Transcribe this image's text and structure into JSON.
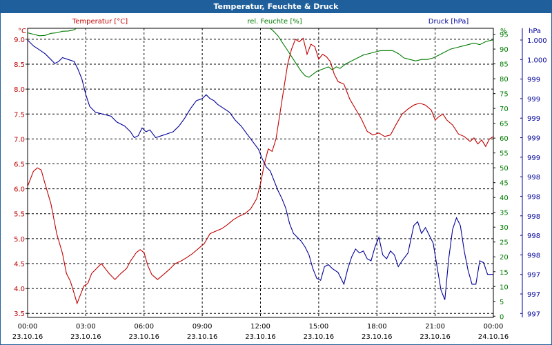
{
  "window": {
    "title": "Temperatur, Feuchte & Druck"
  },
  "colors": {
    "temperature": "#c00000",
    "humidity": "#007a00",
    "pressure": "#000099",
    "axis": "#000000",
    "grid": "#000000",
    "background": "#ffffff",
    "title_bg": "#1f5f9c"
  },
  "chart_data": {
    "type": "line",
    "title": "Temperatur, Feuchte & Druck",
    "grid": true,
    "x_axis": {
      "range_hours": [
        0,
        24
      ],
      "ticks": [
        {
          "h": 0,
          "time": "00:00",
          "date": "23.10.16"
        },
        {
          "h": 3,
          "time": "03:00",
          "date": "23.10.16"
        },
        {
          "h": 6,
          "time": "06:00",
          "date": "23.10.16"
        },
        {
          "h": 9,
          "time": "09:00",
          "date": "23.10.16"
        },
        {
          "h": 12,
          "time": "12:00",
          "date": "23.10.16"
        },
        {
          "h": 15,
          "time": "15:00",
          "date": "23.10.16"
        },
        {
          "h": 18,
          "time": "18:00",
          "date": "23.10.16"
        },
        {
          "h": 21,
          "time": "21:00",
          "date": "23.10.16"
        },
        {
          "h": 24,
          "time": "00:00",
          "date": "24.10.16"
        }
      ]
    },
    "temperature": {
      "name": "Temperatur [°C]",
      "unit": "°C",
      "ylim": [
        3.42,
        9.22
      ],
      "ticks": [
        "3.5",
        "4.0",
        "4.5",
        "5.0",
        "5.5",
        "6.0",
        "6.5",
        "7.0",
        "7.5",
        "8.0",
        "8.5",
        "9.0"
      ],
      "points": [
        [
          0,
          6.05
        ],
        [
          0.3,
          6.35
        ],
        [
          0.5,
          6.42
        ],
        [
          0.7,
          6.38
        ],
        [
          0.9,
          6.1
        ],
        [
          1.2,
          5.7
        ],
        [
          1.5,
          5.1
        ],
        [
          1.8,
          4.7
        ],
        [
          2.0,
          4.3
        ],
        [
          2.2,
          4.15
        ],
        [
          2.4,
          3.9
        ],
        [
          2.55,
          3.7
        ],
        [
          2.7,
          3.85
        ],
        [
          2.9,
          4.05
        ],
        [
          3.1,
          4.1
        ],
        [
          3.3,
          4.3
        ],
        [
          3.5,
          4.38
        ],
        [
          3.8,
          4.5
        ],
        [
          4.0,
          4.4
        ],
        [
          4.2,
          4.3
        ],
        [
          4.5,
          4.18
        ],
        [
          4.8,
          4.3
        ],
        [
          5.1,
          4.4
        ],
        [
          5.3,
          4.55
        ],
        [
          5.6,
          4.72
        ],
        [
          5.8,
          4.78
        ],
        [
          6.0,
          4.72
        ],
        [
          6.2,
          4.45
        ],
        [
          6.4,
          4.28
        ],
        [
          6.7,
          4.18
        ],
        [
          7.0,
          4.28
        ],
        [
          7.3,
          4.38
        ],
        [
          7.6,
          4.5
        ],
        [
          7.9,
          4.55
        ],
        [
          8.2,
          4.62
        ],
        [
          8.5,
          4.7
        ],
        [
          8.8,
          4.8
        ],
        [
          9.1,
          4.9
        ],
        [
          9.4,
          5.1
        ],
        [
          9.7,
          5.15
        ],
        [
          10.0,
          5.2
        ],
        [
          10.3,
          5.28
        ],
        [
          10.6,
          5.38
        ],
        [
          10.9,
          5.45
        ],
        [
          11.2,
          5.5
        ],
        [
          11.5,
          5.6
        ],
        [
          11.8,
          5.8
        ],
        [
          12.0,
          6.1
        ],
        [
          12.2,
          6.5
        ],
        [
          12.4,
          6.8
        ],
        [
          12.6,
          6.75
        ],
        [
          12.8,
          7.0
        ],
        [
          13.0,
          7.5
        ],
        [
          13.2,
          8.0
        ],
        [
          13.4,
          8.5
        ],
        [
          13.6,
          8.8
        ],
        [
          13.8,
          9.0
        ],
        [
          14.0,
          8.95
        ],
        [
          14.2,
          9.02
        ],
        [
          14.4,
          8.7
        ],
        [
          14.6,
          8.9
        ],
        [
          14.8,
          8.85
        ],
        [
          15.0,
          8.6
        ],
        [
          15.2,
          8.7
        ],
        [
          15.4,
          8.65
        ],
        [
          15.6,
          8.55
        ],
        [
          15.8,
          8.3
        ],
        [
          16.0,
          8.15
        ],
        [
          16.3,
          8.1
        ],
        [
          16.6,
          7.8
        ],
        [
          16.9,
          7.6
        ],
        [
          17.2,
          7.4
        ],
        [
          17.5,
          7.15
        ],
        [
          17.8,
          7.08
        ],
        [
          18.1,
          7.12
        ],
        [
          18.4,
          7.05
        ],
        [
          18.7,
          7.08
        ],
        [
          19.0,
          7.3
        ],
        [
          19.3,
          7.5
        ],
        [
          19.6,
          7.6
        ],
        [
          19.9,
          7.68
        ],
        [
          20.2,
          7.72
        ],
        [
          20.5,
          7.68
        ],
        [
          20.8,
          7.58
        ],
        [
          21.0,
          7.38
        ],
        [
          21.2,
          7.45
        ],
        [
          21.4,
          7.5
        ],
        [
          21.6,
          7.38
        ],
        [
          21.9,
          7.28
        ],
        [
          22.2,
          7.1
        ],
        [
          22.5,
          7.05
        ],
        [
          22.8,
          6.95
        ],
        [
          23.0,
          7.02
        ],
        [
          23.2,
          6.9
        ],
        [
          23.4,
          6.98
        ],
        [
          23.6,
          6.85
        ],
        [
          23.8,
          7.0
        ],
        [
          24.0,
          7.05
        ]
      ]
    },
    "humidity": {
      "name": "rel. Feuchte [%]",
      "unit": "%",
      "ylim": [
        -0.4,
        97.0
      ],
      "ticks": [
        "0",
        "5",
        "10",
        "15",
        "20",
        "25",
        "30",
        "35",
        "40",
        "45",
        "50",
        "55",
        "60",
        "65",
        "70",
        "75",
        "80",
        "85",
        "90",
        "95"
      ],
      "points": [
        [
          0,
          95.5
        ],
        [
          0.3,
          95
        ],
        [
          0.6,
          94.5
        ],
        [
          0.9,
          94.6
        ],
        [
          1.2,
          95.3
        ],
        [
          1.5,
          95.5
        ],
        [
          1.8,
          96.0
        ],
        [
          2.1,
          96.1
        ],
        [
          2.4,
          96.5
        ],
        [
          2.7,
          97.8
        ],
        [
          3.0,
          99
        ],
        [
          3.3,
          100
        ],
        [
          3.8,
          101
        ],
        [
          11.2,
          101
        ],
        [
          11.6,
          100
        ],
        [
          12.0,
          99
        ],
        [
          12.3,
          97.8
        ],
        [
          12.6,
          96.5
        ],
        [
          12.9,
          94.5
        ],
        [
          13.1,
          92.5
        ],
        [
          13.3,
          90.5
        ],
        [
          13.5,
          88.5
        ],
        [
          13.7,
          86.5
        ],
        [
          13.9,
          84.5
        ],
        [
          14.1,
          82.5
        ],
        [
          14.3,
          81.0
        ],
        [
          14.5,
          80.5
        ],
        [
          14.7,
          81.5
        ],
        [
          14.9,
          82.5
        ],
        [
          15.1,
          83.0
        ],
        [
          15.3,
          83.5
        ],
        [
          15.5,
          84.0
        ],
        [
          15.7,
          83.0
        ],
        [
          15.9,
          84.0
        ],
        [
          16.1,
          83.5
        ],
        [
          16.4,
          85.0
        ],
        [
          16.7,
          86.0
        ],
        [
          17.0,
          87.0
        ],
        [
          17.3,
          88.0
        ],
        [
          17.6,
          88.5
        ],
        [
          17.9,
          89.0
        ],
        [
          18.2,
          89.5
        ],
        [
          18.5,
          89.5
        ],
        [
          18.8,
          89.5
        ],
        [
          19.1,
          88.5
        ],
        [
          19.4,
          87.0
        ],
        [
          19.7,
          86.5
        ],
        [
          20.0,
          86.0
        ],
        [
          20.3,
          86.5
        ],
        [
          20.6,
          86.5
        ],
        [
          20.9,
          87.0
        ],
        [
          21.2,
          88.0
        ],
        [
          21.5,
          89.0
        ],
        [
          21.8,
          90.0
        ],
        [
          22.1,
          90.5
        ],
        [
          22.4,
          91.0
        ],
        [
          22.7,
          91.5
        ],
        [
          23.0,
          92.0
        ],
        [
          23.3,
          91.5
        ],
        [
          23.6,
          92.5
        ],
        [
          23.9,
          93.0
        ],
        [
          24.0,
          93.0
        ]
      ]
    },
    "pressure": {
      "name": "Druck [hPa]",
      "unit": "hPa",
      "ylim": [
        -0.2,
        14.6
      ],
      "ticks": [
        "997",
        "997",
        "997",
        "998",
        "998",
        "998",
        "998",
        "998",
        "999",
        "999",
        "999",
        "999",
        "999",
        "1.000",
        "1.000"
      ],
      "points": [
        [
          0,
          14.0
        ],
        [
          0.3,
          13.7
        ],
        [
          0.6,
          13.5
        ],
        [
          0.9,
          13.3
        ],
        [
          1.2,
          13.0
        ],
        [
          1.4,
          12.8
        ],
        [
          1.6,
          12.9
        ],
        [
          1.8,
          13.1
        ],
        [
          2.1,
          13.0
        ],
        [
          2.4,
          12.9
        ],
        [
          2.6,
          12.5
        ],
        [
          2.8,
          12.0
        ],
        [
          3.0,
          11.2
        ],
        [
          3.2,
          10.6
        ],
        [
          3.5,
          10.3
        ],
        [
          3.9,
          10.2
        ],
        [
          4.3,
          10.1
        ],
        [
          4.6,
          9.8
        ],
        [
          5.0,
          9.6
        ],
        [
          5.3,
          9.3
        ],
        [
          5.5,
          9.0
        ],
        [
          5.7,
          9.1
        ],
        [
          5.9,
          9.5
        ],
        [
          6.1,
          9.3
        ],
        [
          6.3,
          9.4
        ],
        [
          6.6,
          9.0
        ],
        [
          6.9,
          9.1
        ],
        [
          7.2,
          9.2
        ],
        [
          7.5,
          9.3
        ],
        [
          7.8,
          9.6
        ],
        [
          8.1,
          10.0
        ],
        [
          8.4,
          10.5
        ],
        [
          8.7,
          10.9
        ],
        [
          9.0,
          11.0
        ],
        [
          9.2,
          11.2
        ],
        [
          9.4,
          11.0
        ],
        [
          9.6,
          10.9
        ],
        [
          9.8,
          10.7
        ],
        [
          10.1,
          10.5
        ],
        [
          10.4,
          10.3
        ],
        [
          10.7,
          9.9
        ],
        [
          11.0,
          9.6
        ],
        [
          11.3,
          9.2
        ],
        [
          11.6,
          8.8
        ],
        [
          11.9,
          8.4
        ],
        [
          12.1,
          7.9
        ],
        [
          12.3,
          7.5
        ],
        [
          12.5,
          7.3
        ],
        [
          12.7,
          6.8
        ],
        [
          12.9,
          6.3
        ],
        [
          13.1,
          5.9
        ],
        [
          13.3,
          5.4
        ],
        [
          13.5,
          4.6
        ],
        [
          13.7,
          4.1
        ],
        [
          13.9,
          3.9
        ],
        [
          14.1,
          3.7
        ],
        [
          14.3,
          3.4
        ],
        [
          14.5,
          3.0
        ],
        [
          14.7,
          2.3
        ],
        [
          14.9,
          1.8
        ],
        [
          15.1,
          1.7
        ],
        [
          15.3,
          2.4
        ],
        [
          15.5,
          2.5
        ],
        [
          15.7,
          2.3
        ],
        [
          16.0,
          2.1
        ],
        [
          16.3,
          1.5
        ],
        [
          16.5,
          2.3
        ],
        [
          16.7,
          2.9
        ],
        [
          16.9,
          3.3
        ],
        [
          17.1,
          3.1
        ],
        [
          17.3,
          3.2
        ],
        [
          17.5,
          2.8
        ],
        [
          17.7,
          2.7
        ],
        [
          17.9,
          3.4
        ],
        [
          18.1,
          3.9
        ],
        [
          18.3,
          3.0
        ],
        [
          18.5,
          2.8
        ],
        [
          18.7,
          3.2
        ],
        [
          18.9,
          3.0
        ],
        [
          19.1,
          2.4
        ],
        [
          19.3,
          2.7
        ],
        [
          19.6,
          3.1
        ],
        [
          19.9,
          4.5
        ],
        [
          20.1,
          4.7
        ],
        [
          20.3,
          4.1
        ],
        [
          20.5,
          4.4
        ],
        [
          20.7,
          4.0
        ],
        [
          20.9,
          3.6
        ],
        [
          21.1,
          2.4
        ],
        [
          21.3,
          1.2
        ],
        [
          21.5,
          0.7
        ],
        [
          21.7,
          2.8
        ],
        [
          21.9,
          4.3
        ],
        [
          22.1,
          4.9
        ],
        [
          22.3,
          4.5
        ],
        [
          22.5,
          3.2
        ],
        [
          22.7,
          2.2
        ],
        [
          22.9,
          1.5
        ],
        [
          23.1,
          1.5
        ],
        [
          23.3,
          2.7
        ],
        [
          23.5,
          2.6
        ],
        [
          23.7,
          2.0
        ],
        [
          24.0,
          2.0
        ]
      ]
    }
  }
}
